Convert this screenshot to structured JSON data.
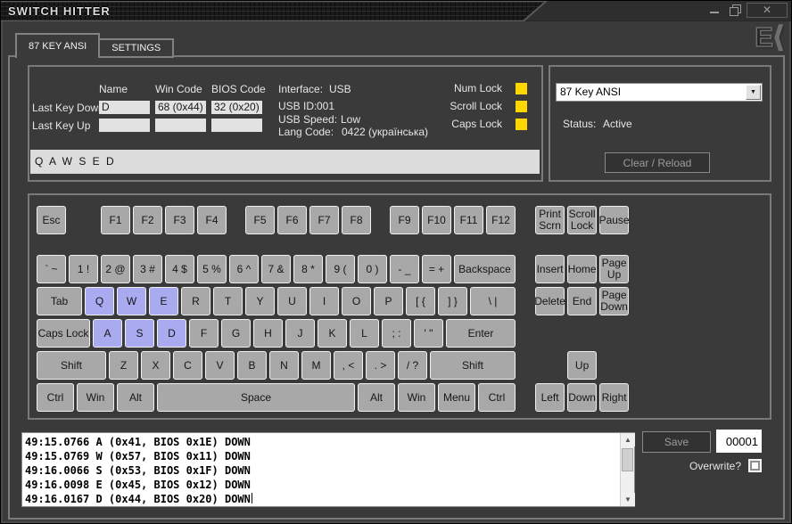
{
  "window": {
    "title": "SWITCH HITTER",
    "logo_text": "E",
    "logo_chevron": "⟨"
  },
  "tabs": {
    "ansi": "87 KEY ANSI",
    "settings": "SETTINGS"
  },
  "info": {
    "columns": [
      "Name",
      "Win Code",
      "BIOS Code"
    ],
    "last_key_down": {
      "label": "Last Key Down",
      "name": "D",
      "win": "68 (0x44)",
      "bios": "32 (0x20)"
    },
    "last_key_up": {
      "label": "Last Key Up",
      "name": "",
      "win": "",
      "bios": ""
    },
    "interface_label": "Interface:",
    "interface_value": "USB",
    "usb_id_label": "USB ID:",
    "usb_id_value": "001",
    "usb_speed_label": "USB Speed:",
    "usb_speed_value": "Low",
    "lang_label": "Lang Code:",
    "lang_value": "0422 (українська)",
    "locks": [
      "Num Lock",
      "Scroll Lock",
      "Caps Lock"
    ],
    "lock_color": "#ffd800",
    "typed_text": "Q A W S E D"
  },
  "panel": {
    "dropdown_value": "87 Key ANSI",
    "status_label": "Status:",
    "status_value": "Active",
    "clear_button": "Clear / Reload"
  },
  "keyboard": {
    "key_color": "#a8a8a8",
    "pressed_color": "#a9aaef",
    "rows": [
      [
        {
          "l": "Esc",
          "x": 0
        },
        {
          "l": "F1",
          "x": 2
        },
        {
          "l": "F2",
          "x": 3
        },
        {
          "l": "F3",
          "x": 4
        },
        {
          "l": "F4",
          "x": 5
        },
        {
          "l": "F5",
          "x": 6.5
        },
        {
          "l": "F6",
          "x": 7.5
        },
        {
          "l": "F7",
          "x": 8.5
        },
        {
          "l": "F8",
          "x": 9.5
        },
        {
          "l": "F9",
          "x": 11
        },
        {
          "l": "F10",
          "x": 12
        },
        {
          "l": "F11",
          "x": 13
        },
        {
          "l": "F12",
          "x": 14
        },
        {
          "l": "Print\nScrn",
          "x": 15.53,
          "n": "print-screen"
        },
        {
          "l": "Scroll\nLock",
          "x": 16.53,
          "n": "scroll-lock"
        },
        {
          "l": "Pause",
          "x": 17.53
        }
      ],
      [
        {
          "l": "` ~",
          "x": 0,
          "n": "backtick"
        },
        {
          "l": "1 !",
          "x": 1,
          "n": "1"
        },
        {
          "l": "2 @",
          "x": 2,
          "n": "2"
        },
        {
          "l": "3 #",
          "x": 3,
          "n": "3"
        },
        {
          "l": "4 $",
          "x": 4,
          "n": "4"
        },
        {
          "l": "5 %",
          "x": 5,
          "n": "5"
        },
        {
          "l": "6 ^",
          "x": 6,
          "n": "6"
        },
        {
          "l": "7 &",
          "x": 7,
          "n": "7"
        },
        {
          "l": "8 *",
          "x": 8,
          "n": "8"
        },
        {
          "l": "9 (",
          "x": 9,
          "n": "9"
        },
        {
          "l": "0 )",
          "x": 10,
          "n": "0"
        },
        {
          "l": "- _",
          "x": 11,
          "n": "minus"
        },
        {
          "l": "= +",
          "x": 12,
          "n": "equals"
        },
        {
          "l": "Backspace",
          "x": 13,
          "w": 2
        },
        {
          "l": "Insert",
          "x": 15.53
        },
        {
          "l": "Home",
          "x": 16.53
        },
        {
          "l": "Page\nUp",
          "x": 17.53,
          "n": "page-up"
        }
      ],
      [
        {
          "l": "Tab",
          "x": 0,
          "w": 1.5
        },
        {
          "l": "Q",
          "x": 1.5,
          "p": true
        },
        {
          "l": "W",
          "x": 2.5,
          "p": true
        },
        {
          "l": "E",
          "x": 3.5,
          "p": true
        },
        {
          "l": "R",
          "x": 4.5
        },
        {
          "l": "T",
          "x": 5.5
        },
        {
          "l": "Y",
          "x": 6.5
        },
        {
          "l": "U",
          "x": 7.5
        },
        {
          "l": "I",
          "x": 8.5
        },
        {
          "l": "O",
          "x": 9.5
        },
        {
          "l": "P",
          "x": 10.5
        },
        {
          "l": "[ {",
          "x": 11.5,
          "n": "bracket-left"
        },
        {
          "l": "] }",
          "x": 12.5,
          "n": "bracket-right"
        },
        {
          "l": "\\ |",
          "x": 13.5,
          "w": 1.5,
          "n": "backslash"
        },
        {
          "l": "Delete",
          "x": 15.53
        },
        {
          "l": "End",
          "x": 16.53
        },
        {
          "l": "Page\nDown",
          "x": 17.53,
          "n": "page-down"
        }
      ],
      [
        {
          "l": "Caps Lock",
          "x": 0,
          "w": 1.75
        },
        {
          "l": "A",
          "x": 1.75,
          "p": true
        },
        {
          "l": "S",
          "x": 2.75,
          "p": true
        },
        {
          "l": "D",
          "x": 3.75,
          "p": true
        },
        {
          "l": "F",
          "x": 4.75
        },
        {
          "l": "G",
          "x": 5.75
        },
        {
          "l": "H",
          "x": 6.75
        },
        {
          "l": "J",
          "x": 7.75
        },
        {
          "l": "K",
          "x": 8.75
        },
        {
          "l": "L",
          "x": 9.75
        },
        {
          "l": "; :",
          "x": 10.75,
          "n": "semicolon"
        },
        {
          "l": "' \"",
          "x": 11.75,
          "n": "quote"
        },
        {
          "l": "Enter",
          "x": 12.75,
          "w": 2.25
        }
      ],
      [
        {
          "l": "Shift",
          "x": 0,
          "w": 2.25
        },
        {
          "l": "Z",
          "x": 2.25
        },
        {
          "l": "X",
          "x": 3.25
        },
        {
          "l": "C",
          "x": 4.25
        },
        {
          "l": "V",
          "x": 5.25
        },
        {
          "l": "B",
          "x": 6.25
        },
        {
          "l": "N",
          "x": 7.25
        },
        {
          "l": "M",
          "x": 8.25
        },
        {
          "l": ", <",
          "x": 9.25,
          "n": "comma"
        },
        {
          "l": ". >",
          "x": 10.25,
          "n": "period"
        },
        {
          "l": "/ ?",
          "x": 11.25,
          "n": "slash"
        },
        {
          "l": "Shift",
          "x": 12.25,
          "w": 2.75,
          "n": "shift-right"
        },
        {
          "l": "Up",
          "x": 16.53
        }
      ],
      [
        {
          "l": "Ctrl",
          "x": 0,
          "w": 1.25
        },
        {
          "l": "Win",
          "x": 1.25,
          "w": 1.25
        },
        {
          "l": "Alt",
          "x": 2.5,
          "w": 1.25
        },
        {
          "l": "Space",
          "x": 3.75,
          "w": 6.25
        },
        {
          "l": "Alt",
          "x": 10,
          "w": 1.25,
          "n": "alt-right"
        },
        {
          "l": "Win",
          "x": 11.25,
          "w": 1.25,
          "n": "win-right"
        },
        {
          "l": "Menu",
          "x": 12.5,
          "w": 1.25
        },
        {
          "l": "Ctrl",
          "x": 13.75,
          "w": 1.25,
          "n": "ctrl-right"
        },
        {
          "l": "Left",
          "x": 15.53
        },
        {
          "l": "Down",
          "x": 16.53
        },
        {
          "l": "Right",
          "x": 17.53
        }
      ]
    ]
  },
  "log": {
    "lines": [
      "49:15.0766 A (0x41, BIOS 0x1E) DOWN",
      "49:15.0769 W (0x57, BIOS 0x11) DOWN",
      "49:16.0066 S (0x53, BIOS 0x1F) DOWN",
      "49:16.0098 E (0x45, BIOS 0x12) DOWN",
      "49:16.0167 D (0x44, BIOS 0x20) DOWN"
    ]
  },
  "footer": {
    "save_label": "Save",
    "counter_value": "00001",
    "overwrite_label": "Overwrite?"
  }
}
